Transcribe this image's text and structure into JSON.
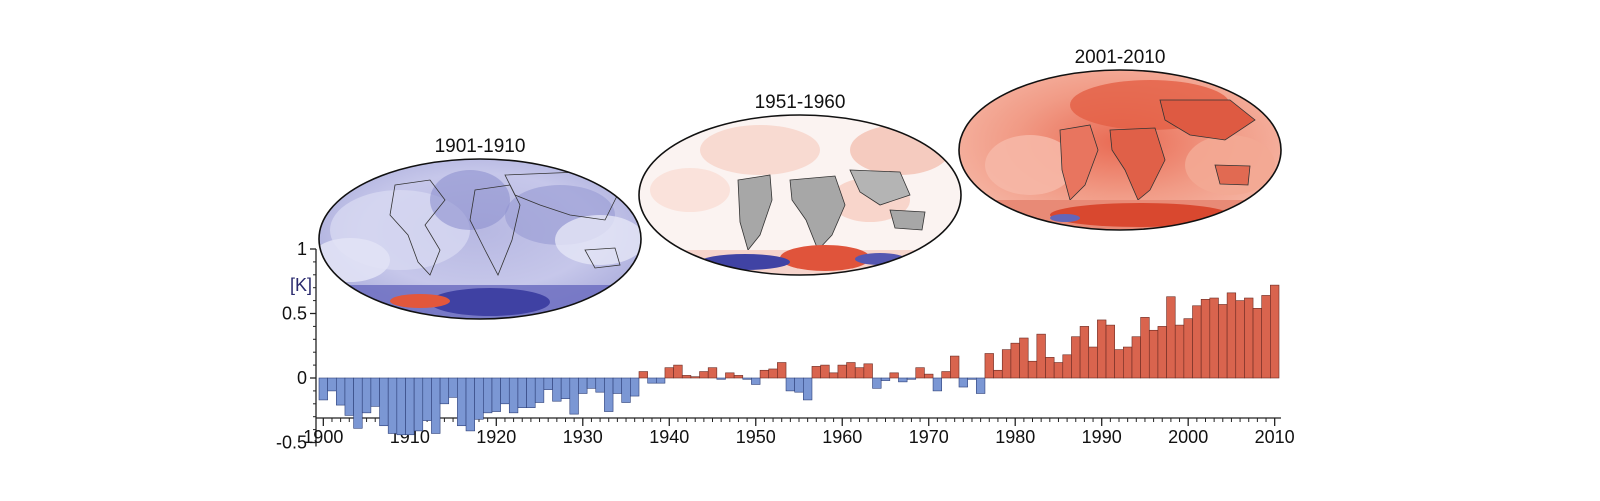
{
  "maps": [
    {
      "title": "1901-1910",
      "tone": "cool"
    },
    {
      "title": "1951-1960",
      "tone": "neutral"
    },
    {
      "title": "2001-2010",
      "tone": "warm"
    }
  ],
  "colors": {
    "positive_bar": "#d9644e",
    "negative_bar": "#7b97d4",
    "bar_edge": "#6a2a22",
    "neg_edge": "#2d3f78",
    "axis": "#222222"
  },
  "chart_data": {
    "type": "bar",
    "title": "",
    "xlabel": "",
    "ylabel": "[K]",
    "xlim": [
      1900,
      2010
    ],
    "ylim": [
      -0.5,
      1
    ],
    "yticks": [
      {
        "value": 1,
        "label": "1"
      },
      {
        "value": 0.5,
        "label": "0.5"
      },
      {
        "value": 0,
        "label": "0"
      },
      {
        "value": -0.5,
        "label": "-0.5"
      }
    ],
    "xticks": [
      {
        "value": 1900,
        "label": "1900"
      },
      {
        "value": 1910,
        "label": "1910"
      },
      {
        "value": 1920,
        "label": "1920"
      },
      {
        "value": 1930,
        "label": "1930"
      },
      {
        "value": 1940,
        "label": "1940"
      },
      {
        "value": 1950,
        "label": "1950"
      },
      {
        "value": 1960,
        "label": "1960"
      },
      {
        "value": 1970,
        "label": "1970"
      },
      {
        "value": 1980,
        "label": "1980"
      },
      {
        "value": 1990,
        "label": "1990"
      },
      {
        "value": 2000,
        "label": "2000"
      },
      {
        "value": 2010,
        "label": "2010"
      }
    ],
    "x": [
      1900,
      1901,
      1902,
      1903,
      1904,
      1905,
      1906,
      1907,
      1908,
      1909,
      1910,
      1911,
      1912,
      1913,
      1914,
      1915,
      1916,
      1917,
      1918,
      1919,
      1920,
      1921,
      1922,
      1923,
      1924,
      1925,
      1926,
      1927,
      1928,
      1929,
      1930,
      1931,
      1932,
      1933,
      1934,
      1935,
      1936,
      1937,
      1938,
      1939,
      1940,
      1941,
      1942,
      1943,
      1944,
      1945,
      1946,
      1947,
      1948,
      1949,
      1950,
      1951,
      1952,
      1953,
      1954,
      1955,
      1956,
      1957,
      1958,
      1959,
      1960,
      1961,
      1962,
      1963,
      1964,
      1965,
      1966,
      1967,
      1968,
      1969,
      1970,
      1971,
      1972,
      1973,
      1974,
      1975,
      1976,
      1977,
      1978,
      1979,
      1980,
      1981,
      1982,
      1983,
      1984,
      1985,
      1986,
      1987,
      1988,
      1989,
      1990,
      1991,
      1992,
      1993,
      1994,
      1995,
      1996,
      1997,
      1998,
      1999,
      2000,
      2001,
      2002,
      2003,
      2004,
      2005,
      2006,
      2007,
      2008,
      2009,
      2010
    ],
    "values": [
      -0.17,
      -0.1,
      -0.21,
      -0.29,
      -0.39,
      -0.27,
      -0.22,
      -0.37,
      -0.43,
      -0.44,
      -0.44,
      -0.41,
      -0.33,
      -0.43,
      -0.2,
      -0.15,
      -0.37,
      -0.41,
      -0.32,
      -0.27,
      -0.26,
      -0.2,
      -0.27,
      -0.23,
      -0.23,
      -0.19,
      -0.09,
      -0.18,
      -0.16,
      -0.28,
      -0.12,
      -0.08,
      -0.11,
      -0.26,
      -0.12,
      -0.19,
      -0.14,
      0.05,
      -0.04,
      -0.04,
      0.08,
      0.1,
      0.02,
      0.01,
      0.05,
      0.08,
      -0.01,
      0.04,
      0.02,
      -0.01,
      -0.05,
      0.06,
      0.07,
      0.12,
      -0.1,
      -0.11,
      -0.17,
      0.09,
      0.1,
      0.04,
      0.1,
      0.12,
      0.08,
      0.11,
      -0.08,
      -0.02,
      0.04,
      -0.03,
      -0.01,
      0.08,
      0.03,
      -0.1,
      0.05,
      0.17,
      -0.07,
      -0.01,
      -0.12,
      0.19,
      0.06,
      0.22,
      0.27,
      0.31,
      0.13,
      0.34,
      0.16,
      0.12,
      0.18,
      0.32,
      0.4,
      0.24,
      0.45,
      0.41,
      0.22,
      0.24,
      0.32,
      0.47,
      0.37,
      0.4,
      0.63,
      0.41,
      0.46,
      0.56,
      0.61,
      0.62,
      0.57,
      0.66,
      0.6,
      0.62,
      0.54,
      0.64,
      0.72
    ]
  }
}
